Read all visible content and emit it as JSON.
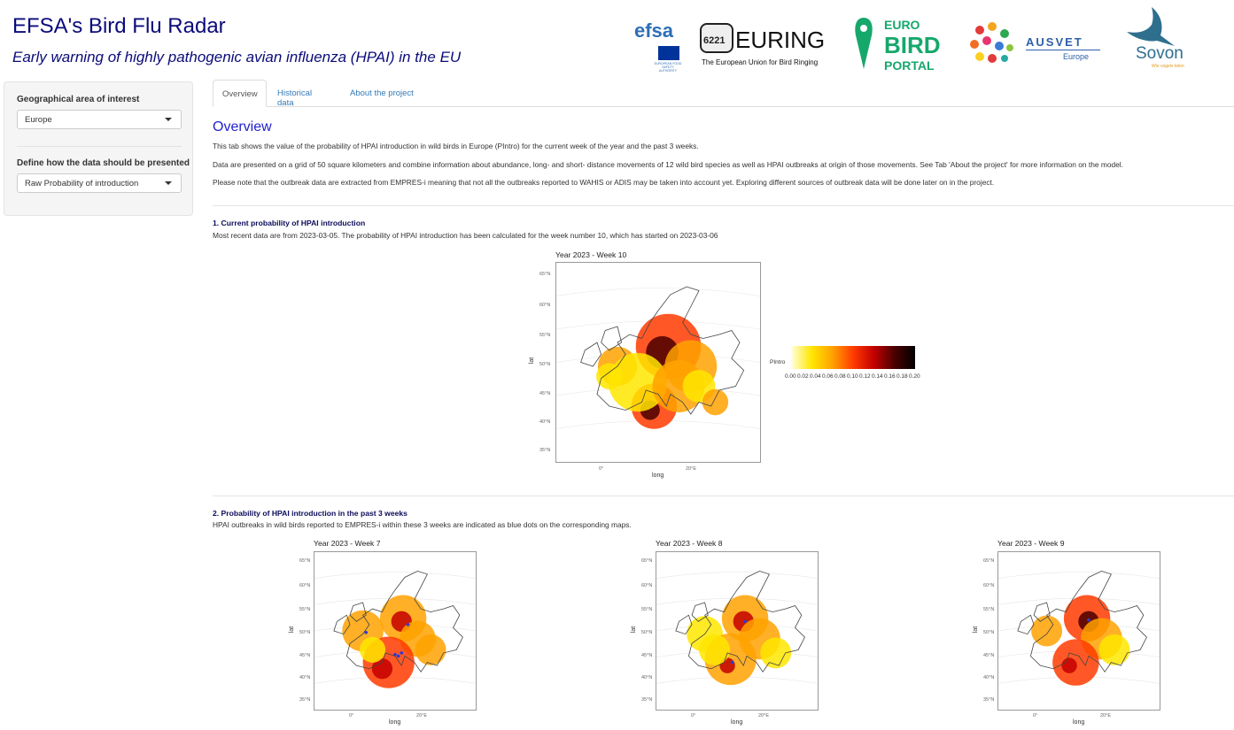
{
  "header": {
    "title": "EFSA's Bird Flu Radar",
    "subtitle": "Early warning of highly pathogenic avian influenza (HPAI) in the EU"
  },
  "logos": {
    "efsa": "efsa",
    "efsa_caption": "EUROPEAN FOOD SAFETY AUTHORITY",
    "euring": "EURING",
    "euring_ring": "6221",
    "euring_tagline": "The European Union for Bird Ringing",
    "eurobird_1": "EURO",
    "eurobird_2": "BIRD",
    "eurobird_3": "PORTAL",
    "ausvet_1": "AUSVET",
    "ausvet_2": "Europe",
    "sovon": "Sovon",
    "sovon_tag": "Wie vogels telen"
  },
  "sidebar": {
    "area_label": "Geographical area of interest",
    "area_value": "Europe",
    "present_label": "Define how the data should be presented",
    "present_value": "Raw Probability of introduction"
  },
  "tabs": [
    "Overview",
    "Historical data",
    "About the project"
  ],
  "overview": {
    "heading": "Overview",
    "p1": "This tab shows the value of the probability of HPAI introduction in wild birds in Europe (PIntro) for the current week of the year and the past 3 weeks.",
    "p2": "Data are presented on a grid of 50 square kilometers and combine information about abundance, long- and short- distance movements of 12 wild bird species as well as HPAI outbreaks at origin of those movements. See Tab 'About the project' for more information on the model.",
    "p3": "Please note that the outbreak data are extracted from EMPRES-i meaning that not all the outbreaks reported to WAHIS or ADIS may be taken into account yet. Exploring different sources of outbreak data will be done later on in the project."
  },
  "section1": {
    "heading": "1. Current probability of HPAI introduction",
    "text": "Most recent data are from 2023-03-05. The probability of HPAI introduction has been calculated for the week number 10, which has started on 2023-03-06"
  },
  "section2": {
    "heading": "2. Probability of HPAI introduction in the past 3 weeks",
    "text": "HPAI outbreaks in wild birds reported to EMPRES-i within these 3 weeks are indicated as blue dots on the corresponding maps."
  },
  "maps": {
    "main_title": "Year 2023 - Week 10",
    "past_titles": [
      "Year 2023 - Week 7",
      "Year 2023 - Week 8",
      "Year 2023 - Week 9"
    ],
    "xlabel": "long",
    "ylabel": "lat",
    "lat_ticks": [
      "65°N",
      "60°N",
      "55°N",
      "50°N",
      "45°N",
      "40°N",
      "35°N"
    ],
    "lon_ticks": [
      "0°",
      "20°E"
    ],
    "legend_title": "PIntro",
    "legend_ticks": [
      "0.00",
      "0.02",
      "0.04",
      "0.06",
      "0.08",
      "0.10",
      "0.12",
      "0.14",
      "0.16",
      "0.18",
      "0.20"
    ],
    "colors": [
      "#ffffe0",
      "#ffe600",
      "#ffa200",
      "#ff3b00",
      "#c40000",
      "#4a0000",
      "#000000"
    ]
  }
}
